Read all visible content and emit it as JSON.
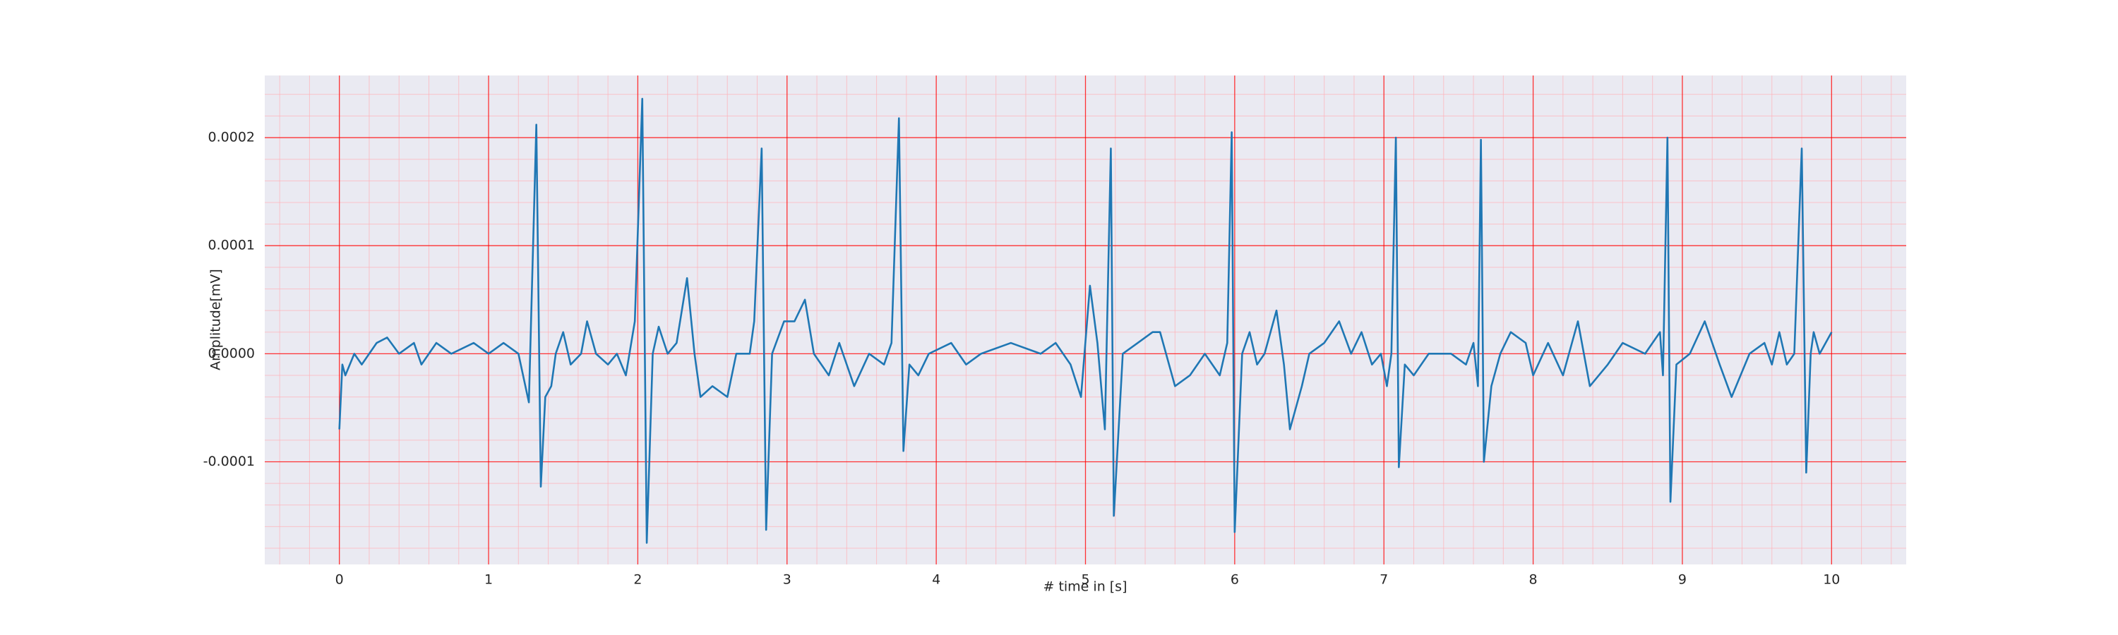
{
  "chart_data": {
    "type": "line",
    "xlabel": "# time in [s]",
    "ylabel": "Amplitude[mV]",
    "color": "#1f77b4",
    "grid": true,
    "grid_color": "#ff0000",
    "minor_grid": {
      "x_step": 0.2,
      "y_step": 2e-05,
      "color": "#ffb0b8"
    },
    "xlim": [
      -0.5,
      10.5
    ],
    "xticks": [
      0,
      1,
      2,
      3,
      4,
      5,
      6,
      7,
      8,
      9,
      10
    ],
    "ylim": [
      -0.000195,
      0.0002575
    ],
    "yticks": [
      -0.0001,
      {
        "value": 0,
        "label": "0.0000"
      },
      0.0001,
      0.0002
    ],
    "x": [
      0,
      0.02,
      0.04,
      0.1,
      0.15,
      0.25,
      0.32,
      0.4,
      0.5,
      0.55,
      0.65,
      0.75,
      0.9,
      1.0,
      1.1,
      1.2,
      1.27,
      1.32,
      1.35,
      1.38,
      1.42,
      1.45,
      1.5,
      1.55,
      1.62,
      1.66,
      1.72,
      1.8,
      1.86,
      1.92,
      1.98,
      2.03,
      2.06,
      2.1,
      2.14,
      2.2,
      2.26,
      2.33,
      2.38,
      2.42,
      2.5,
      2.6,
      2.66,
      2.75,
      2.78,
      2.83,
      2.86,
      2.9,
      2.98,
      3.05,
      3.12,
      3.18,
      3.28,
      3.35,
      3.45,
      3.55,
      3.65,
      3.7,
      3.75,
      3.78,
      3.82,
      3.88,
      3.95,
      4.1,
      4.2,
      4.3,
      4.5,
      4.7,
      4.8,
      4.9,
      4.97,
      5.03,
      5.08,
      5.13,
      5.17,
      5.19,
      5.25,
      5.35,
      5.45,
      5.5,
      5.6,
      5.7,
      5.8,
      5.9,
      5.95,
      5.98,
      6.0,
      6.05,
      6.1,
      6.15,
      6.2,
      6.28,
      6.33,
      6.37,
      6.45,
      6.5,
      6.6,
      6.7,
      6.78,
      6.85,
      6.92,
      6.98,
      7.02,
      7.05,
      7.08,
      7.1,
      7.14,
      7.2,
      7.3,
      7.45,
      7.55,
      7.6,
      7.63,
      7.65,
      7.67,
      7.72,
      7.78,
      7.85,
      7.95,
      8.0,
      8.1,
      8.2,
      8.3,
      8.38,
      8.5,
      8.6,
      8.75,
      8.85,
      8.87,
      8.9,
      8.92,
      8.96,
      9.05,
      9.15,
      9.25,
      9.33,
      9.45,
      9.55,
      9.6,
      9.65,
      9.7,
      9.75,
      9.8,
      9.83,
      9.86,
      9.88,
      9.92,
      10.0
    ],
    "values": [
      -7e-05,
      -1e-05,
      -2e-05,
      0,
      -1e-05,
      1e-05,
      1.5e-05,
      0,
      1e-05,
      -1e-05,
      1e-05,
      0,
      1e-05,
      0,
      1e-05,
      0,
      -4.5e-05,
      0.000212,
      -0.000123,
      -4e-05,
      -3e-05,
      0,
      2e-05,
      -1e-05,
      0,
      3e-05,
      0,
      -1e-05,
      0,
      -2e-05,
      3e-05,
      0.000236,
      -0.000175,
      0,
      2.5e-05,
      0,
      1e-05,
      7e-05,
      0,
      -4e-05,
      -3e-05,
      -4e-05,
      0,
      0,
      3e-05,
      0.00019,
      -0.000163,
      0,
      3e-05,
      3e-05,
      5e-05,
      0,
      -2e-05,
      1e-05,
      -3e-05,
      0,
      -1e-05,
      1e-05,
      0.000218,
      -9e-05,
      -1e-05,
      -2e-05,
      0,
      1e-05,
      -1e-05,
      0,
      1e-05,
      0,
      1e-05,
      -1e-05,
      -4e-05,
      6.3e-05,
      1e-05,
      -7e-05,
      0.00019,
      -0.00015,
      0,
      1e-05,
      2e-05,
      2e-05,
      -3e-05,
      -2e-05,
      0,
      -2e-05,
      1e-05,
      0.000205,
      -0.000165,
      0,
      2e-05,
      -1e-05,
      0,
      4e-05,
      -1e-05,
      -7e-05,
      -3e-05,
      0,
      1e-05,
      3e-05,
      0,
      2e-05,
      -1e-05,
      0,
      -3e-05,
      0,
      0.0002,
      -0.000105,
      -1e-05,
      -2e-05,
      0,
      0,
      -1e-05,
      1e-05,
      -3e-05,
      0.000198,
      -0.0001,
      -3e-05,
      0,
      2e-05,
      1e-05,
      -2e-05,
      1e-05,
      -2e-05,
      3e-05,
      -3e-05,
      -1e-05,
      1e-05,
      0,
      2e-05,
      -2e-05,
      0.0002,
      -0.000137,
      -1e-05,
      0,
      3e-05,
      -1e-05,
      -4e-05,
      0,
      1e-05,
      -1e-05,
      2e-05,
      -1e-05,
      0,
      0.00019,
      -0.00011,
      0,
      2e-05,
      0,
      2e-05
    ]
  }
}
